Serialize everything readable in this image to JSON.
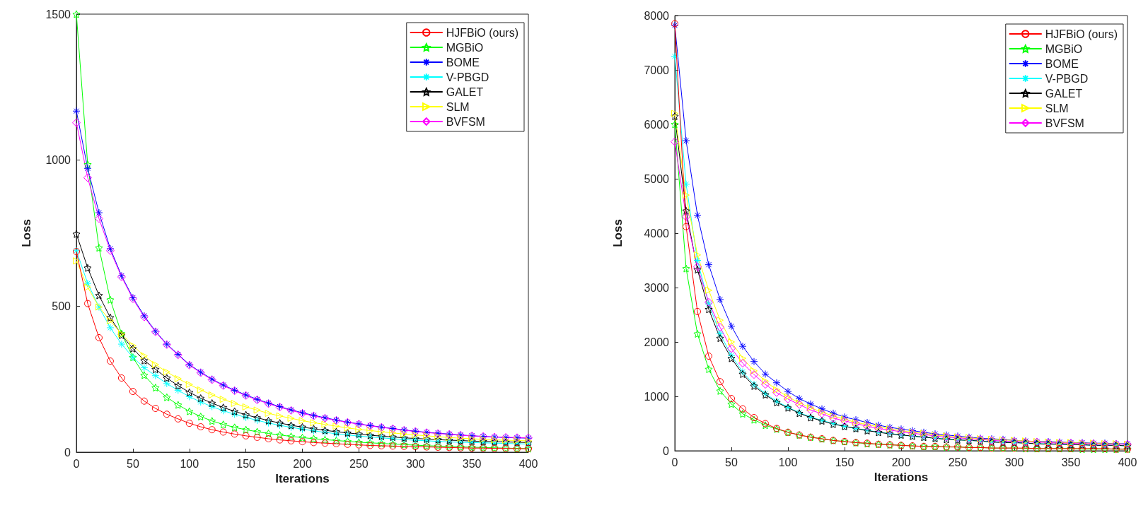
{
  "chart_data": [
    {
      "type": "line",
      "xlabel": "Iterations",
      "ylabel": "Loss",
      "xlim": [
        0,
        400
      ],
      "xticks": [
        0,
        50,
        100,
        150,
        200,
        250,
        300,
        350,
        400
      ],
      "ylim": [
        0,
        1500
      ],
      "yticks": [
        0,
        500,
        1000,
        1500
      ],
      "grid": false,
      "legend": "top right",
      "line_style": "solid",
      "x": [
        0,
        10,
        20,
        30,
        40,
        50,
        60,
        70,
        80,
        90,
        100,
        110,
        120,
        130,
        140,
        150,
        160,
        170,
        180,
        190,
        200,
        210,
        220,
        230,
        240,
        250,
        260,
        270,
        280,
        290,
        300,
        310,
        320,
        330,
        340,
        350,
        360,
        370,
        380,
        390,
        400
      ],
      "series": [
        {
          "name": "HJFBiO (ours)",
          "color": "#ff0000",
          "marker": "circle",
          "values": [
            687,
            509,
            392,
            312,
            254,
            208,
            175,
            150,
            130,
            114,
            99,
            87,
            77,
            69,
            62,
            56,
            51,
            46,
            42,
            39,
            36,
            33,
            31,
            29,
            27,
            25,
            23,
            22,
            21,
            20,
            19,
            18,
            17,
            16,
            15,
            14,
            14,
            13,
            13,
            12,
            12
          ]
        },
        {
          "name": "MGBiO",
          "color": "#00ff00",
          "marker": "star",
          "values": [
            1500,
            985,
            700,
            522,
            406,
            325,
            264,
            221,
            188,
            162,
            140,
            122,
            107,
            95,
            85,
            77,
            70,
            64,
            59,
            54,
            50,
            46,
            43,
            40,
            37,
            34,
            32,
            30,
            28,
            26,
            24,
            22,
            21,
            20,
            18,
            17,
            16,
            15,
            14,
            13,
            12
          ]
        },
        {
          "name": "BOME",
          "color": "#0000ff",
          "marker": "cross",
          "values": [
            1168,
            972,
            820,
            697,
            604,
            529,
            467,
            414,
            370,
            335,
            300,
            274,
            250,
            230,
            212,
            196,
            181,
            168,
            156,
            145,
            135,
            126,
            118,
            110,
            103,
            97,
            91,
            86,
            81,
            76,
            72,
            68,
            65,
            62,
            59,
            56,
            54,
            52,
            50,
            49,
            48
          ]
        },
        {
          "name": "V-PBGD",
          "color": "#00ffff",
          "marker": "cross",
          "values": [
            690,
            578,
            497,
            426,
            370,
            325,
            289,
            262,
            235,
            212,
            190,
            172,
            156,
            142,
            130,
            119,
            109,
            100,
            92,
            85,
            79,
            73,
            68,
            63,
            59,
            55,
            52,
            49,
            46,
            43,
            41,
            39,
            37,
            35,
            34,
            33,
            32,
            31,
            30,
            29,
            28
          ]
        },
        {
          "name": "GALET",
          "color": "#000000",
          "marker": "star",
          "values": [
            747,
            631,
            537,
            461,
            401,
            355,
            314,
            284,
            254,
            228,
            205,
            185,
            168,
            153,
            140,
            128,
            118,
            108,
            100,
            92,
            86,
            80,
            75,
            70,
            66,
            62,
            58,
            55,
            52,
            49,
            47,
            45,
            43,
            41,
            40,
            38,
            37,
            36,
            35,
            34,
            33
          ]
        },
        {
          "name": "SLM",
          "color": "#ffff00",
          "marker": "triangle",
          "values": [
            655,
            565,
            497,
            450,
            405,
            365,
            330,
            300,
            275,
            252,
            232,
            213,
            196,
            181,
            167,
            155,
            144,
            133,
            124,
            116,
            108,
            101,
            95,
            89,
            83,
            78,
            74,
            70,
            66,
            62,
            59,
            56,
            53,
            50,
            48,
            46,
            44,
            42,
            41,
            40,
            39
          ]
        },
        {
          "name": "BVFSM",
          "color": "#ff00ff",
          "marker": "diamond",
          "values": [
            1128,
            940,
            800,
            690,
            600,
            525,
            463,
            412,
            368,
            333,
            298,
            272,
            248,
            228,
            210,
            194,
            179,
            166,
            154,
            143,
            133,
            124,
            116,
            109,
            102,
            96,
            90,
            85,
            80,
            75,
            71,
            67,
            64,
            61,
            58,
            56,
            54,
            52,
            51,
            50,
            49
          ]
        }
      ]
    },
    {
      "type": "line",
      "xlabel": "Iterations",
      "ylabel": "Loss",
      "xlim": [
        0,
        400
      ],
      "xticks": [
        0,
        50,
        100,
        150,
        200,
        250,
        300,
        350,
        400
      ],
      "ylim": [
        0,
        8000
      ],
      "yticks": [
        0,
        1000,
        2000,
        3000,
        4000,
        5000,
        6000,
        7000,
        8000
      ],
      "grid": false,
      "legend": "top right",
      "line_style": "solid",
      "x": [
        0,
        10,
        20,
        30,
        40,
        50,
        60,
        70,
        80,
        90,
        100,
        110,
        120,
        130,
        140,
        150,
        160,
        170,
        180,
        190,
        200,
        210,
        220,
        230,
        240,
        250,
        260,
        270,
        280,
        290,
        300,
        310,
        320,
        330,
        340,
        350,
        360,
        370,
        380,
        390,
        400
      ],
      "series": [
        {
          "name": "HJFBiO (ours)",
          "color": "#ff0000",
          "marker": "circle",
          "values": [
            7850,
            4120,
            2560,
            1740,
            1270,
            960,
            770,
            610,
            500,
            410,
            340,
            290,
            250,
            220,
            190,
            170,
            150,
            140,
            120,
            110,
            100,
            90,
            80,
            80,
            70,
            70,
            60,
            60,
            50,
            50,
            50,
            50,
            40,
            40,
            40,
            40,
            40,
            40,
            40,
            30,
            30
          ]
        },
        {
          "name": "MGBiO",
          "color": "#00ff00",
          "marker": "star",
          "values": [
            6000,
            3350,
            2150,
            1500,
            1100,
            860,
            680,
            570,
            470,
            400,
            340,
            290,
            250,
            220,
            190,
            170,
            150,
            130,
            120,
            110,
            100,
            90,
            80,
            80,
            70,
            70,
            60,
            60,
            50,
            50,
            50,
            40,
            40,
            40,
            40,
            40,
            30,
            30,
            30,
            30,
            30
          ]
        },
        {
          "name": "BOME",
          "color": "#0000ff",
          "marker": "cross",
          "values": [
            7820,
            5700,
            4330,
            3420,
            2780,
            2290,
            1920,
            1640,
            1410,
            1250,
            1090,
            960,
            860,
            770,
            690,
            620,
            570,
            520,
            470,
            430,
            400,
            370,
            340,
            310,
            290,
            270,
            250,
            230,
            220,
            210,
            190,
            180,
            170,
            170,
            160,
            150,
            150,
            140,
            140,
            130,
            130
          ]
        },
        {
          "name": "V-PBGD",
          "color": "#00ffff",
          "marker": "cross",
          "values": [
            7250,
            4900,
            3500,
            2700,
            2150,
            1750,
            1450,
            1220,
            1050,
            910,
            800,
            700,
            620,
            560,
            500,
            450,
            410,
            380,
            340,
            320,
            290,
            270,
            250,
            230,
            220,
            200,
            190,
            180,
            170,
            160,
            150,
            140,
            130,
            130,
            120,
            110,
            110,
            100,
            100,
            100,
            90
          ]
        },
        {
          "name": "GALET",
          "color": "#000000",
          "marker": "star",
          "values": [
            6150,
            4410,
            3330,
            2600,
            2070,
            1700,
            1410,
            1190,
            1030,
            890,
            790,
            690,
            610,
            550,
            490,
            450,
            410,
            370,
            340,
            310,
            290,
            270,
            250,
            230,
            210,
            200,
            190,
            180,
            160,
            150,
            150,
            140,
            130,
            120,
            120,
            110,
            110,
            100,
            100,
            100,
            90
          ]
        },
        {
          "name": "SLM",
          "color": "#ffff00",
          "marker": "triangle",
          "values": [
            6200,
            4700,
            3600,
            2950,
            2400,
            2000,
            1700,
            1470,
            1280,
            1120,
            990,
            880,
            790,
            710,
            640,
            580,
            520,
            480,
            440,
            400,
            370,
            340,
            320,
            290,
            270,
            250,
            240,
            220,
            210,
            200,
            190,
            180,
            170,
            160,
            150,
            150,
            140,
            140,
            130,
            130,
            120
          ]
        },
        {
          "name": "BVFSM",
          "color": "#ff00ff",
          "marker": "diamond",
          "values": [
            5680,
            4300,
            3380,
            2730,
            2270,
            1880,
            1610,
            1400,
            1220,
            1070,
            950,
            850,
            750,
            680,
            600,
            550,
            500,
            450,
            410,
            380,
            350,
            320,
            300,
            270,
            250,
            240,
            220,
            210,
            190,
            180,
            170,
            160,
            160,
            150,
            140,
            140,
            130,
            130,
            120,
            120,
            120
          ]
        }
      ]
    }
  ]
}
